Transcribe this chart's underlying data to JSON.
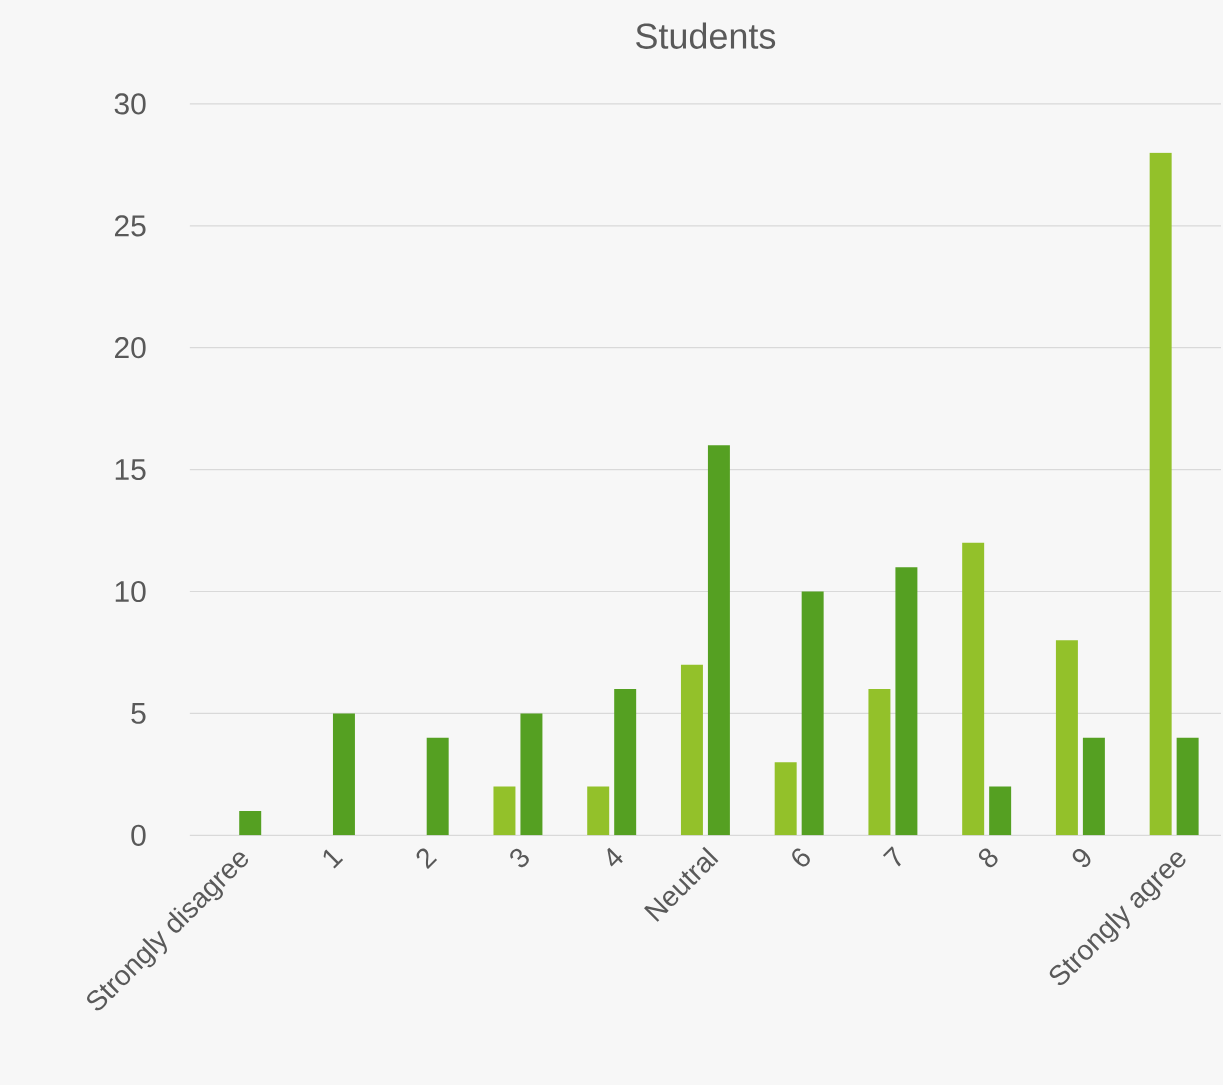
{
  "chart_data": {
    "type": "bar",
    "title": "Students",
    "categories": [
      "Strongly disagree",
      "1",
      "2",
      "3",
      "4",
      "Neutral",
      "6",
      "7",
      "8",
      "9",
      "Strongly agree"
    ],
    "series": [
      {
        "color": "#93c12a",
        "values": [
          0,
          0,
          0,
          2,
          2,
          7,
          3,
          6,
          12,
          8,
          28
        ]
      },
      {
        "color": "#55a022",
        "values": [
          1,
          5,
          4,
          5,
          6,
          16,
          10,
          11,
          2,
          4,
          4
        ]
      }
    ],
    "ylim": [
      0,
      30
    ],
    "yticks": [
      0,
      5,
      10,
      15,
      20,
      25,
      30
    ],
    "grid": "y"
  }
}
